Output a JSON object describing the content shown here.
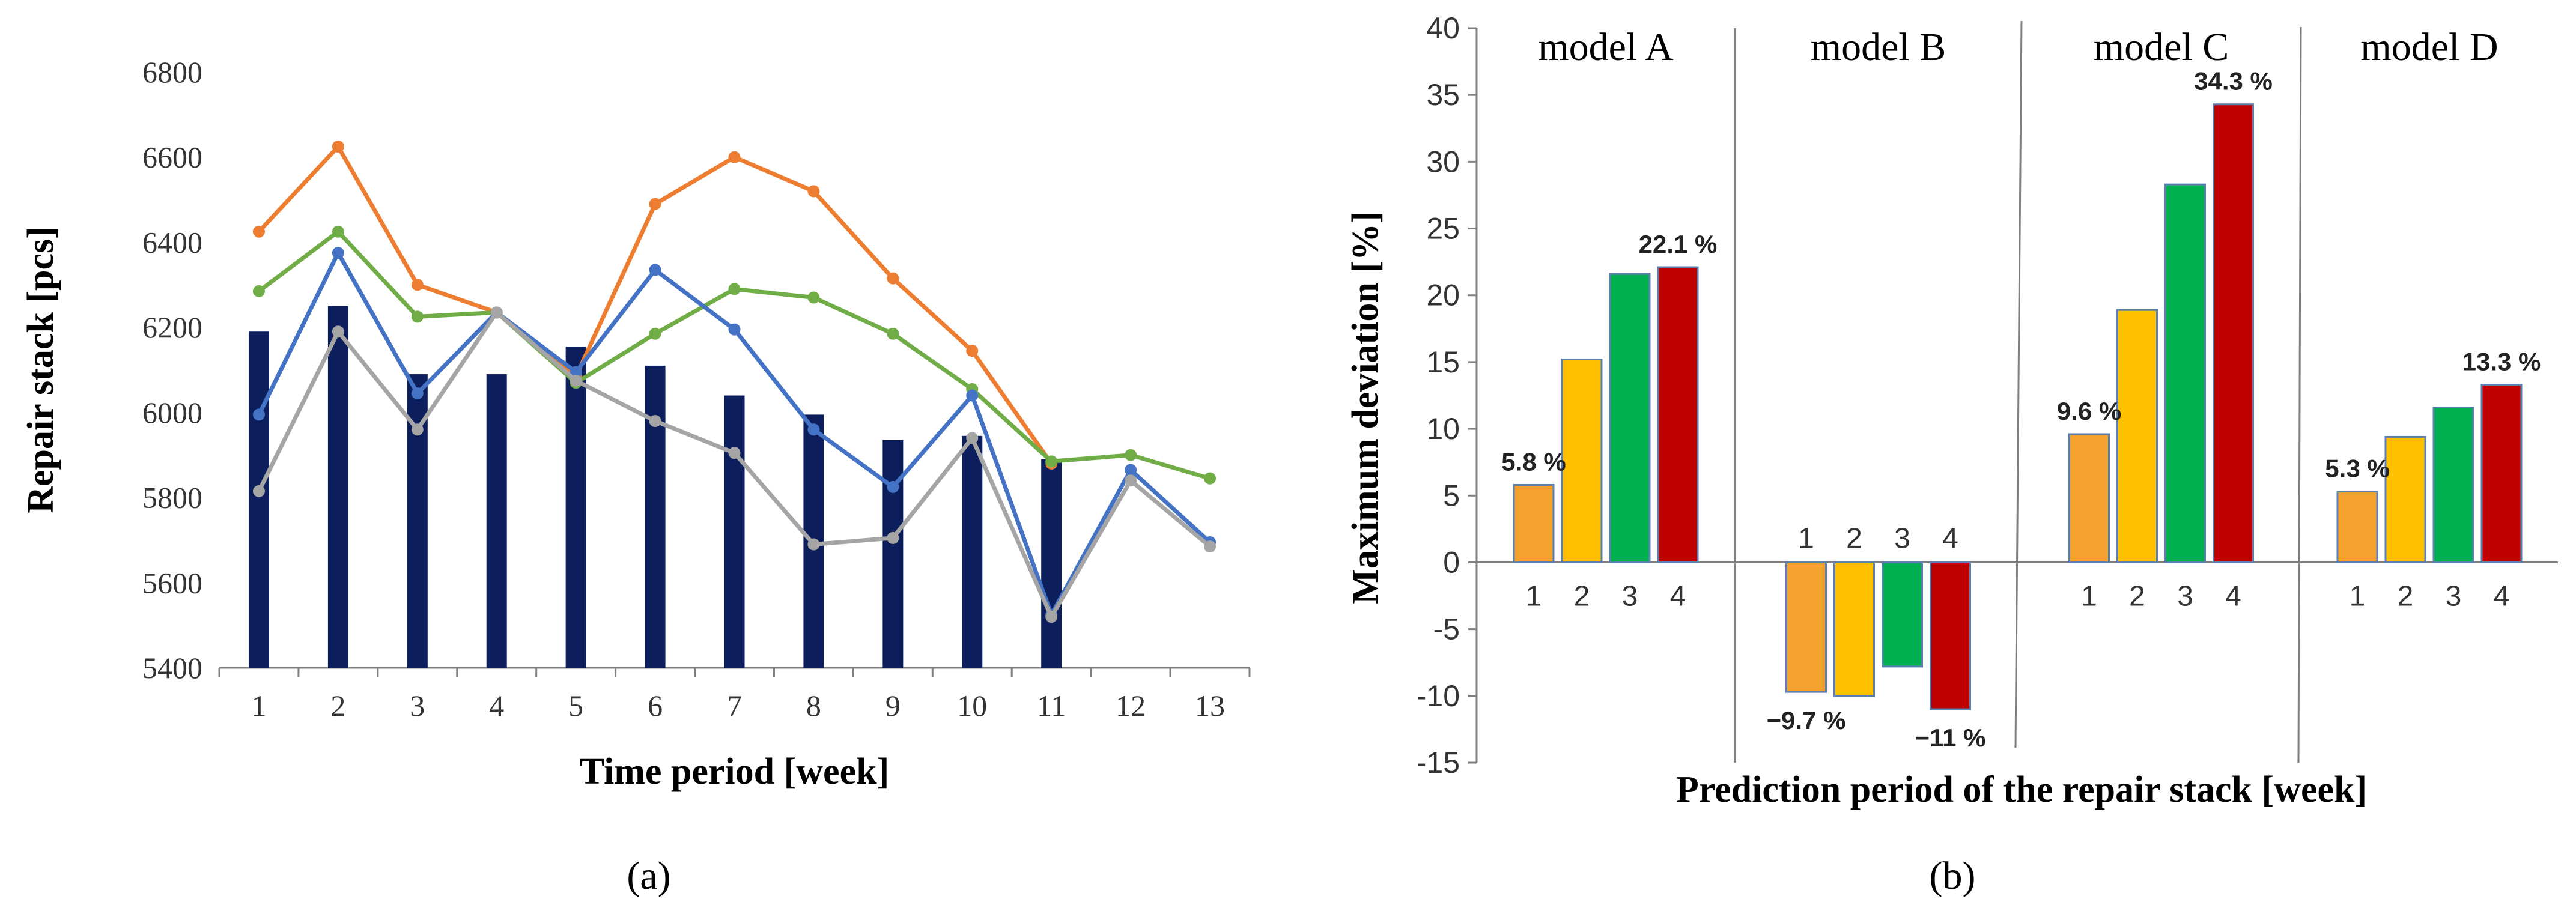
{
  "colors": {
    "bar_navy": "#0c1f5c",
    "line_orange": "#ed7d31",
    "line_green": "#70ad47",
    "line_blue": "#4472c4",
    "line_gray": "#a5a5a5",
    "bar1": "#f4a22d",
    "bar2": "#ffc000",
    "bar3": "#00b050",
    "bar4": "#c00000"
  },
  "panel_labels": {
    "a": "(a)",
    "b": "(b)"
  },
  "chart_data": [
    {
      "type": "bar+line",
      "xlabel": "Time period [week]",
      "ylabel": "Repair stack [pcs]",
      "ylim": [
        5400,
        6800
      ],
      "yticks": [
        5400,
        5600,
        5800,
        6000,
        6200,
        6400,
        6600,
        6800
      ],
      "categories": [
        "1",
        "2",
        "3",
        "4",
        "5",
        "6",
        "7",
        "8",
        "9",
        "10",
        "11",
        "12",
        "13"
      ],
      "bars": [
        6190,
        6250,
        6090,
        6090,
        6155,
        6110,
        6040,
        5995,
        5935,
        5945,
        5890,
        null,
        null
      ],
      "series": [
        {
          "color_key": "line_orange",
          "values": [
            6425,
            6625,
            6300,
            6235,
            6085,
            6490,
            6600,
            6520,
            6315,
            6145,
            5880,
            null,
            null
          ]
        },
        {
          "color_key": "line_green",
          "values": [
            6285,
            6425,
            6225,
            6235,
            6070,
            6185,
            6290,
            6270,
            6185,
            6055,
            5885,
            5900,
            5845
          ]
        },
        {
          "color_key": "line_blue",
          "values": [
            5995,
            6375,
            6045,
            6235,
            6095,
            6335,
            6195,
            5960,
            5825,
            6040,
            5525,
            5865,
            5695
          ]
        },
        {
          "color_key": "line_gray",
          "values": [
            5815,
            6190,
            5960,
            6235,
            6075,
            5980,
            5905,
            5690,
            5705,
            5940,
            5520,
            5840,
            5685
          ]
        }
      ]
    },
    {
      "type": "bar",
      "xlabel": "Prediction period of the repair stack [week]",
      "ylabel": "Maximum deviation [%]",
      "ylim": [
        -15,
        40
      ],
      "yticks": [
        -15,
        -10,
        -5,
        0,
        5,
        10,
        15,
        20,
        25,
        30,
        35,
        40
      ],
      "groups": [
        {
          "name": "model A",
          "categories": [
            "1",
            "2",
            "3",
            "4"
          ],
          "values": [
            5.8,
            15.2,
            21.6,
            22.1
          ],
          "labels": [
            {
              "index": 0,
              "text": "5.8 %"
            },
            {
              "index": 3,
              "text": "22.1 %"
            }
          ]
        },
        {
          "name": "model B",
          "categories": [
            "1",
            "2",
            "3",
            "4"
          ],
          "values": [
            -9.7,
            -10.0,
            -7.8,
            -11.0
          ],
          "labels": [
            {
              "index": 0,
              "text": "−9.7 %"
            },
            {
              "index": 3,
              "text": "−11 %"
            }
          ]
        },
        {
          "name": "model C",
          "categories": [
            "1",
            "2",
            "3",
            "4"
          ],
          "values": [
            9.6,
            18.9,
            28.3,
            34.3
          ],
          "labels": [
            {
              "index": 0,
              "text": "9.6 %"
            },
            {
              "index": 3,
              "text": "34.3 %"
            }
          ]
        },
        {
          "name": "model D",
          "categories": [
            "1",
            "2",
            "3",
            "4"
          ],
          "values": [
            5.3,
            9.4,
            11.6,
            13.3
          ],
          "labels": [
            {
              "index": 0,
              "text": "5.3 %"
            },
            {
              "index": 3,
              "text": "13.3 %"
            }
          ]
        }
      ]
    }
  ]
}
